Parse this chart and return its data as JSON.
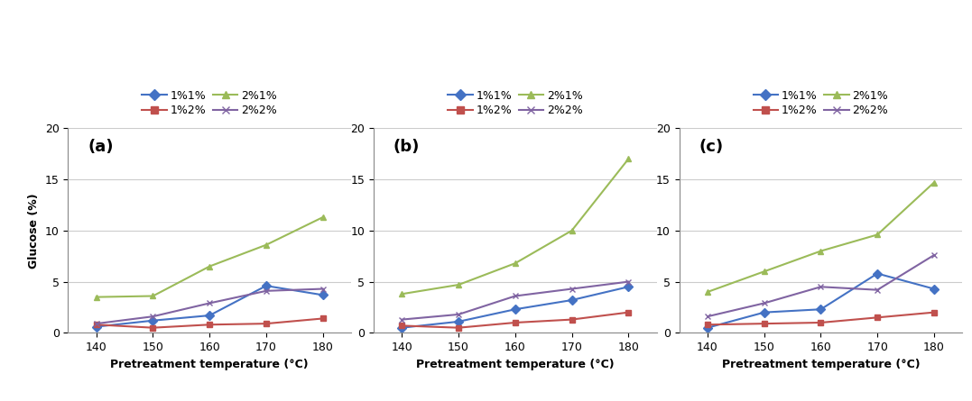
{
  "x": [
    140,
    150,
    160,
    170,
    180
  ],
  "panels": [
    {
      "label": "(a)",
      "series": {
        "1%1%": [
          0.6,
          1.2,
          1.7,
          4.6,
          3.7
        ],
        "1%2%": [
          0.8,
          0.5,
          0.8,
          0.9,
          1.4
        ],
        "2%1%": [
          3.5,
          3.6,
          6.5,
          8.6,
          11.3
        ],
        "2%2%": [
          0.9,
          1.6,
          2.9,
          4.1,
          4.3
        ]
      }
    },
    {
      "label": "(b)",
      "series": {
        "1%1%": [
          0.5,
          1.1,
          2.3,
          3.2,
          4.5
        ],
        "1%2%": [
          0.7,
          0.5,
          1.0,
          1.3,
          2.0
        ],
        "2%1%": [
          3.8,
          4.7,
          6.8,
          10.0,
          17.0
        ],
        "2%2%": [
          1.3,
          1.8,
          3.6,
          4.3,
          5.0
        ]
      }
    },
    {
      "label": "(c)",
      "series": {
        "1%1%": [
          0.5,
          2.0,
          2.3,
          5.8,
          4.3
        ],
        "1%2%": [
          0.8,
          0.9,
          1.0,
          1.5,
          2.0
        ],
        "2%1%": [
          4.0,
          6.0,
          8.0,
          9.6,
          14.7
        ],
        "2%2%": [
          1.6,
          2.9,
          4.5,
          4.2,
          7.6
        ]
      }
    }
  ],
  "colors": {
    "1%1%": "#4472C4",
    "1%2%": "#C0504D",
    "2%1%": "#9BBB59",
    "2%2%": "#8064A2"
  },
  "markers": {
    "1%1%": "D",
    "1%2%": "s",
    "2%1%": "^",
    "2%2%": "x"
  },
  "ylabel": "Glucose (%)",
  "xlabel": "Pretreatment temperature (°C)",
  "ylim": [
    0,
    20
  ],
  "yticks": [
    0,
    5,
    10,
    15,
    20
  ],
  "legend_labels": [
    "1%1%",
    "1%2%",
    "2%1%",
    "2%2%"
  ]
}
